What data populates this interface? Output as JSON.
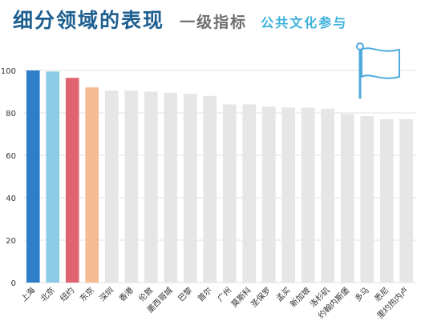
{
  "header": {
    "title": "细分领域的表现",
    "subtitle": "一级指标",
    "category": "公共文化参与"
  },
  "icons": {
    "flag": "flag-icon"
  },
  "colors": {
    "highlights": [
      "#2e7fc8",
      "#8ccbe6",
      "#e06470",
      "#f5bb92"
    ],
    "default_bar": "#e6e6e6",
    "grid": "#e2e2e2",
    "axis_text": "#333333"
  },
  "chart_data": {
    "type": "bar",
    "title": "",
    "xlabel": "",
    "ylabel": "",
    "ylim": [
      0,
      100
    ],
    "yticks": [
      0,
      20,
      40,
      60,
      80,
      100
    ],
    "grid": true,
    "categories": [
      "上海",
      "北京",
      "纽约",
      "东京",
      "深圳",
      "香港",
      "伦敦",
      "墨西哥城",
      "巴黎",
      "首尔",
      "广州",
      "莫斯科",
      "圣保罗",
      "孟买",
      "新加坡",
      "洛杉矶",
      "约翰内斯堡",
      "多马",
      "悉尼",
      "里约热内卢"
    ],
    "values": [
      100,
      99.5,
      96.5,
      92,
      90.5,
      90.5,
      90,
      89.5,
      89,
      88,
      84,
      84,
      83,
      82.5,
      82.5,
      82,
      79.5,
      78.5,
      77,
      77
    ]
  }
}
